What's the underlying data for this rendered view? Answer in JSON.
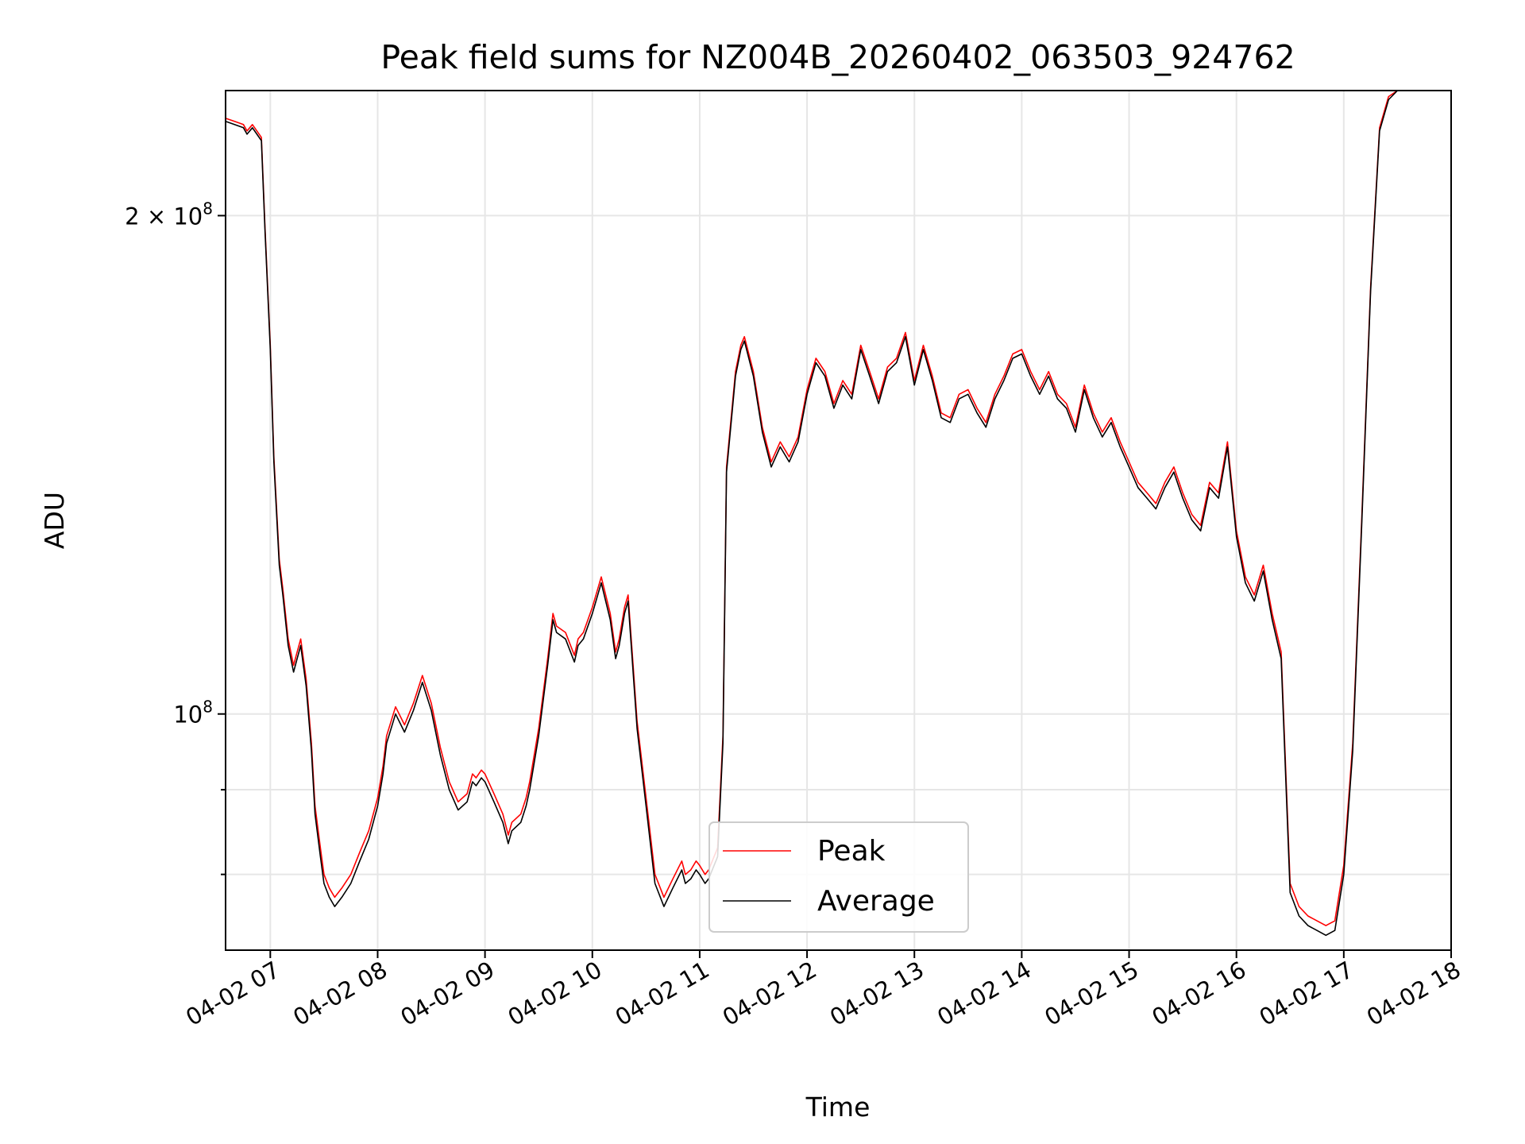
{
  "chart_data": {
    "type": "line",
    "title": "Peak field sums for NZ004B_20260402_063503_924762",
    "xlabel": "Time",
    "ylabel": "ADU",
    "yscale": "log",
    "xlim": [
      "2026-04-02 06:35",
      "2026-04-02 18:00"
    ],
    "ylim": [
      72000000,
      238000000
    ],
    "x_ticks": [
      "04-02 07",
      "04-02 08",
      "04-02 09",
      "04-02 10",
      "04-02 11",
      "04-02 12",
      "04-02 13",
      "04-02 14",
      "04-02 15",
      "04-02 16",
      "04-02 17",
      "04-02 18"
    ],
    "y_ticks": [
      {
        "value": 100000000,
        "label_base": "10",
        "label_exp": "8"
      },
      {
        "value": 200000000,
        "label_base": "2 × 10",
        "label_exp": "8"
      }
    ],
    "y_minor_ticks": [
      80000000,
      90000000
    ],
    "grid": true,
    "legend_position": "lower-center",
    "series": [
      {
        "name": "Peak",
        "color": "#ff0000"
      },
      {
        "name": "Average",
        "color": "#000000"
      }
    ],
    "x": [
      "06:35",
      "06:40",
      "06:45",
      "06:47",
      "06:50",
      "06:55",
      "06:57",
      "07:00",
      "07:02",
      "07:05",
      "07:07",
      "07:10",
      "07:13",
      "07:15",
      "07:17",
      "07:20",
      "07:23",
      "07:25",
      "07:28",
      "07:30",
      "07:33",
      "07:36",
      "07:40",
      "07:45",
      "07:50",
      "07:55",
      "08:00",
      "08:03",
      "08:05",
      "08:10",
      "08:12",
      "08:15",
      "08:20",
      "08:25",
      "08:30",
      "08:35",
      "08:40",
      "08:45",
      "08:50",
      "08:53",
      "08:55",
      "08:58",
      "09:00",
      "09:05",
      "09:10",
      "09:13",
      "09:15",
      "09:20",
      "09:23",
      "09:25",
      "09:30",
      "09:35",
      "09:38",
      "09:40",
      "09:45",
      "09:50",
      "09:52",
      "09:55",
      "10:00",
      "10:05",
      "10:10",
      "10:13",
      "10:15",
      "10:18",
      "10:20",
      "10:25",
      "10:30",
      "10:35",
      "10:40",
      "10:45",
      "10:50",
      "10:52",
      "10:55",
      "10:58",
      "11:00",
      "11:03",
      "11:05",
      "11:10",
      "11:13",
      "11:15",
      "11:20",
      "11:23",
      "11:25",
      "11:30",
      "11:35",
      "11:40",
      "11:45",
      "11:50",
      "11:55",
      "12:00",
      "12:05",
      "12:10",
      "12:15",
      "12:20",
      "12:25",
      "12:30",
      "12:35",
      "12:40",
      "12:45",
      "12:50",
      "12:55",
      "13:00",
      "13:05",
      "13:10",
      "13:15",
      "13:20",
      "13:25",
      "13:30",
      "13:35",
      "13:40",
      "13:45",
      "13:50",
      "13:55",
      "14:00",
      "14:05",
      "14:10",
      "14:15",
      "14:20",
      "14:25",
      "14:30",
      "14:35",
      "14:40",
      "14:45",
      "14:50",
      "14:55",
      "15:00",
      "15:05",
      "15:10",
      "15:15",
      "15:20",
      "15:25",
      "15:30",
      "15:35",
      "15:40",
      "15:45",
      "15:50",
      "15:55",
      "16:00",
      "16:05",
      "16:10",
      "16:15",
      "16:20",
      "16:25",
      "16:30",
      "16:35",
      "16:40",
      "16:45",
      "16:50",
      "16:55",
      "17:00",
      "17:05",
      "17:10",
      "17:15",
      "17:20",
      "17:25",
      "17:30",
      "17:35",
      "17:40",
      "17:45",
      "17:50",
      "17:55",
      "18:00"
    ],
    "average": [
      228000000,
      227000000,
      226000000,
      224000000,
      226000000,
      222000000,
      196000000,
      166000000,
      142000000,
      123000000,
      118000000,
      110000000,
      106000000,
      108000000,
      110000000,
      104000000,
      95000000,
      87000000,
      82000000,
      79000000,
      77500000,
      76500000,
      77500000,
      79000000,
      81500000,
      84000000,
      88000000,
      92000000,
      96000000,
      100000000,
      99000000,
      97500000,
      100500000,
      104500000,
      100500000,
      94500000,
      90000000,
      87500000,
      88500000,
      91000000,
      90500000,
      91500000,
      91000000,
      88500000,
      86000000,
      83500000,
      85000000,
      86000000,
      88000000,
      90000000,
      97000000,
      107000000,
      114000000,
      112000000,
      111000000,
      107500000,
      110000000,
      111000000,
      115000000,
      120000000,
      114000000,
      108000000,
      110000000,
      115000000,
      117000000,
      98000000,
      88000000,
      79000000,
      76500000,
      78500000,
      80500000,
      79000000,
      79500000,
      80500000,
      80000000,
      79000000,
      79500000,
      82000000,
      96000000,
      140000000,
      160000000,
      166000000,
      168000000,
      160000000,
      148000000,
      141000000,
      145000000,
      142000000,
      146000000,
      156000000,
      163000000,
      160000000,
      153000000,
      158000000,
      155000000,
      166000000,
      160000000,
      154000000,
      161000000,
      163000000,
      169000000,
      158000000,
      166000000,
      159000000,
      151000000,
      150000000,
      155000000,
      156000000,
      152000000,
      149000000,
      155000000,
      159000000,
      164000000,
      165000000,
      160000000,
      156000000,
      160000000,
      155000000,
      153000000,
      148000000,
      157000000,
      151000000,
      147000000,
      150000000,
      145000000,
      141000000,
      137000000,
      135000000,
      133000000,
      137000000,
      140000000,
      135000000,
      131000000,
      129000000,
      137000000,
      135000000,
      145000000,
      128000000,
      120000000,
      117000000,
      122000000,
      114000000,
      108000000,
      78000000,
      75500000,
      74500000,
      74000000,
      73500000,
      74000000,
      80000000,
      95000000,
      130000000,
      180000000,
      225000000,
      235000000,
      238000000
    ],
    "peak": [
      229000000,
      228000000,
      227000000,
      225000000,
      227000000,
      223000000,
      197000000,
      167000000,
      143000000,
      124000000,
      119000000,
      111000000,
      107000000,
      109000000,
      111000000,
      105000000,
      96000000,
      88000000,
      83000000,
      80000000,
      78500000,
      77500000,
      78500000,
      80000000,
      82500000,
      85000000,
      89000000,
      93000000,
      97000000,
      101000000,
      100000000,
      98500000,
      101500000,
      105500000,
      101500000,
      95500000,
      91000000,
      88500000,
      89500000,
      92000000,
      91500000,
      92500000,
      92000000,
      89500000,
      87000000,
      84500000,
      86000000,
      87000000,
      89000000,
      91000000,
      98000000,
      108000000,
      115000000,
      113000000,
      112000000,
      108500000,
      111000000,
      112000000,
      116000000,
      121000000,
      115000000,
      109000000,
      111000000,
      116000000,
      118000000,
      99000000,
      89000000,
      80000000,
      77500000,
      79500000,
      81500000,
      80000000,
      80500000,
      81500000,
      81000000,
      80000000,
      80500000,
      83000000,
      97000000,
      141000000,
      161000000,
      167000000,
      169000000,
      161000000,
      149000000,
      142000000,
      146000000,
      143000000,
      147000000,
      157000000,
      164000000,
      161000000,
      154000000,
      159000000,
      156000000,
      167000000,
      161000000,
      155000000,
      162000000,
      164000000,
      170000000,
      159000000,
      167000000,
      160000000,
      152000000,
      151000000,
      156000000,
      157000000,
      153000000,
      150000000,
      156000000,
      160000000,
      165000000,
      166000000,
      161000000,
      157000000,
      161000000,
      156000000,
      154000000,
      149000000,
      158000000,
      152000000,
      148000000,
      151000000,
      146000000,
      142000000,
      138000000,
      136000000,
      134000000,
      138000000,
      141000000,
      136000000,
      132000000,
      130000000,
      138000000,
      136000000,
      146000000,
      129000000,
      121000000,
      118000000,
      123000000,
      115000000,
      109000000,
      79000000,
      76500000,
      75500000,
      75000000,
      74500000,
      75000000,
      81000000,
      96000000,
      131000000,
      181000000,
      226000000,
      236000000,
      238000000
    ]
  }
}
